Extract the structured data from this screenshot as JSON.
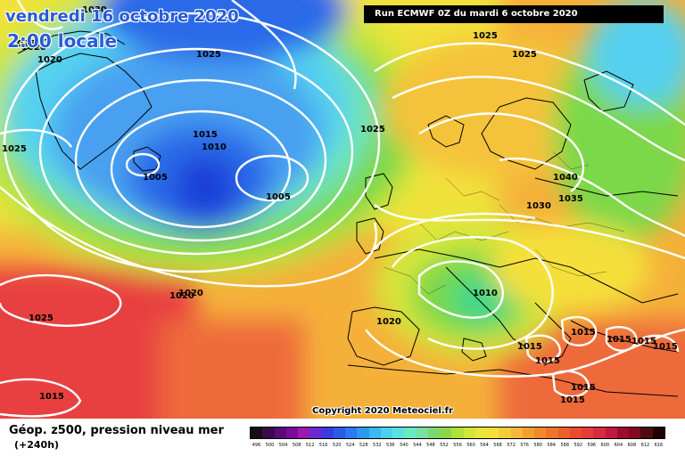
{
  "header": {
    "date_label": "vendredi 16 octobre 2020",
    "time_label": "2:00 locale",
    "run_label": "Run ECMWF 0Z du mardi 6 octobre 2020"
  },
  "footer": {
    "product_title": "Géop. z500, pression niveau mer",
    "lead_time": "(+240h)",
    "copyright": "Copyright 2020 Meteociel.fr"
  },
  "colors": {
    "deep_low": "#1a3fd8",
    "low": "#4aa0f0",
    "mid_low": "#55d0f0",
    "cyan_green": "#6ee4c0",
    "green": "#7bd84a",
    "yellow_green": "#c8e63c",
    "yellow": "#f5e13a",
    "orange_yellow": "#f5c23a",
    "orange": "#f29a2a",
    "red_orange": "#ee6a3a",
    "red": "#e84040",
    "isobar": "#ffffff",
    "coast": "#000000"
  },
  "isobar_labels": [
    {
      "text": "1030"
    },
    {
      "text": "1020"
    },
    {
      "text": "1025"
    },
    {
      "text": "1020"
    },
    {
      "text": "1025"
    },
    {
      "text": "1025"
    },
    {
      "text": "1015"
    },
    {
      "text": "1010"
    },
    {
      "text": "1005"
    },
    {
      "text": "1005"
    },
    {
      "text": "1025"
    },
    {
      "text": "1020"
    },
    {
      "text": "1025"
    },
    {
      "text": "1025"
    },
    {
      "text": "1030"
    },
    {
      "text": "1040"
    },
    {
      "text": "1035"
    },
    {
      "text": "1010"
    },
    {
      "text": "1020"
    },
    {
      "text": "1015"
    },
    {
      "text": "1015"
    },
    {
      "text": "1015"
    },
    {
      "text": "1015"
    },
    {
      "text": "1015"
    },
    {
      "text": "1015"
    },
    {
      "text": "1015"
    },
    {
      "text": "1020"
    },
    {
      "text": "1015"
    },
    {
      "text": "1025"
    },
    {
      "text": "1015"
    }
  ],
  "scale": {
    "colors": [
      "#1a0a1a",
      "#3a0a4a",
      "#5a0a7a",
      "#7a0a9a",
      "#9a1ab0",
      "#6a2ad0",
      "#3a3ae0",
      "#2a5ae8",
      "#2a7af0",
      "#2a9af0",
      "#3ab8f0",
      "#4ad0f0",
      "#5ae0e0",
      "#6ae8c0",
      "#7ae0a0",
      "#7ad870",
      "#8ad84a",
      "#b0e03a",
      "#d0e63a",
      "#eae63a",
      "#f5e03a",
      "#f5cc3a",
      "#f5b83a",
      "#f2a02a",
      "#f08a2a",
      "#ee742a",
      "#ec5e2a",
      "#ea4a30",
      "#e83a38",
      "#d82a40",
      "#c01a40",
      "#a00a30",
      "#800a20",
      "#500a10",
      "#200000"
    ],
    "labels": [
      "496",
      "500",
      "504",
      "508",
      "512",
      "516",
      "520",
      "524",
      "528",
      "532",
      "536",
      "540",
      "544",
      "548",
      "552",
      "556",
      "560",
      "564",
      "568",
      "572",
      "576",
      "580",
      "584",
      "588",
      "592",
      "596",
      "600",
      "604",
      "608",
      "612",
      "616"
    ]
  }
}
